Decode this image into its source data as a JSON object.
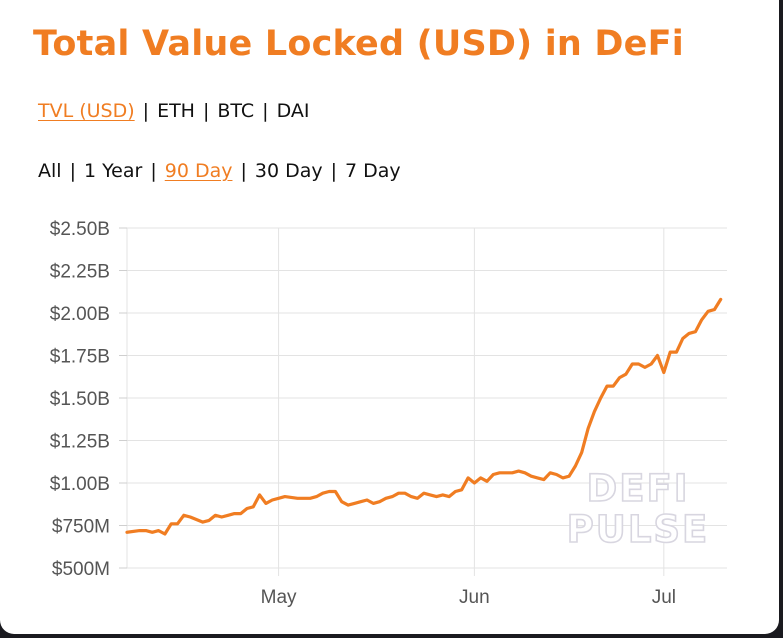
{
  "title": "Total Value Locked (USD) in DeFi",
  "metric_tabs": [
    {
      "label": "TVL (USD)",
      "active": true
    },
    {
      "label": "ETH",
      "active": false
    },
    {
      "label": "BTC",
      "active": false
    },
    {
      "label": "DAI",
      "active": false
    }
  ],
  "range_tabs": [
    {
      "label": "All",
      "active": false
    },
    {
      "label": "1 Year",
      "active": false
    },
    {
      "label": "90 Day",
      "active": true
    },
    {
      "label": "30 Day",
      "active": false
    },
    {
      "label": "7 Day",
      "active": false
    }
  ],
  "separator": "|",
  "watermark": [
    "DEFI",
    "PULSE"
  ],
  "colors": {
    "accent": "#f07d22",
    "grid": "#e3e3e3",
    "axis_text": "#555555"
  },
  "chart_data": {
    "type": "line",
    "title": "Total Value Locked (USD) in DeFi",
    "xlabel": "",
    "ylabel": "",
    "ylim": [
      0.5,
      2.5
    ],
    "yunit": "B USD",
    "yticks": [
      0.5,
      0.75,
      1.0,
      1.25,
      1.5,
      1.75,
      2.0,
      2.25,
      2.5
    ],
    "ytick_labels": [
      "$500M",
      "$750M",
      "$1.00B",
      "$1.25B",
      "$1.50B",
      "$1.75B",
      "$2.00B",
      "$2.25B",
      "$2.50B"
    ],
    "xlim": [
      "2020-04-07",
      "2020-07-11"
    ],
    "xticks": [
      {
        "label": "May",
        "date": "2020-05-01"
      },
      {
        "label": "Jun",
        "date": "2020-06-01"
      },
      {
        "label": "Jul",
        "date": "2020-07-01"
      }
    ],
    "grid": true,
    "legend": "none",
    "series": [
      {
        "color": "#f07d22",
        "points": [
          [
            "2020-04-07",
            0.71
          ],
          [
            "2020-04-09",
            0.72
          ],
          [
            "2020-04-10",
            0.72
          ],
          [
            "2020-04-11",
            0.71
          ],
          [
            "2020-04-12",
            0.72
          ],
          [
            "2020-04-13",
            0.7
          ],
          [
            "2020-04-14",
            0.76
          ],
          [
            "2020-04-15",
            0.76
          ],
          [
            "2020-04-16",
            0.81
          ],
          [
            "2020-04-17",
            0.8
          ],
          [
            "2020-04-19",
            0.77
          ],
          [
            "2020-04-20",
            0.78
          ],
          [
            "2020-04-21",
            0.81
          ],
          [
            "2020-04-22",
            0.8
          ],
          [
            "2020-04-23",
            0.81
          ],
          [
            "2020-04-24",
            0.82
          ],
          [
            "2020-04-25",
            0.82
          ],
          [
            "2020-04-26",
            0.85
          ],
          [
            "2020-04-27",
            0.86
          ],
          [
            "2020-04-28",
            0.93
          ],
          [
            "2020-04-29",
            0.88
          ],
          [
            "2020-04-30",
            0.9
          ],
          [
            "2020-05-01",
            0.91
          ],
          [
            "2020-05-02",
            0.92
          ],
          [
            "2020-05-04",
            0.91
          ],
          [
            "2020-05-06",
            0.91
          ],
          [
            "2020-05-07",
            0.92
          ],
          [
            "2020-05-08",
            0.94
          ],
          [
            "2020-05-09",
            0.95
          ],
          [
            "2020-05-10",
            0.95
          ],
          [
            "2020-05-11",
            0.89
          ],
          [
            "2020-05-12",
            0.87
          ],
          [
            "2020-05-13",
            0.88
          ],
          [
            "2020-05-14",
            0.89
          ],
          [
            "2020-05-15",
            0.9
          ],
          [
            "2020-05-16",
            0.88
          ],
          [
            "2020-05-17",
            0.89
          ],
          [
            "2020-05-18",
            0.91
          ],
          [
            "2020-05-19",
            0.92
          ],
          [
            "2020-05-20",
            0.94
          ],
          [
            "2020-05-21",
            0.94
          ],
          [
            "2020-05-22",
            0.92
          ],
          [
            "2020-05-23",
            0.91
          ],
          [
            "2020-05-24",
            0.94
          ],
          [
            "2020-05-25",
            0.93
          ],
          [
            "2020-05-26",
            0.92
          ],
          [
            "2020-05-27",
            0.93
          ],
          [
            "2020-05-28",
            0.92
          ],
          [
            "2020-05-29",
            0.95
          ],
          [
            "2020-05-30",
            0.96
          ],
          [
            "2020-05-31",
            1.03
          ],
          [
            "2020-06-01",
            1.0
          ],
          [
            "2020-06-02",
            1.03
          ],
          [
            "2020-06-03",
            1.01
          ],
          [
            "2020-06-04",
            1.05
          ],
          [
            "2020-06-05",
            1.06
          ],
          [
            "2020-06-06",
            1.06
          ],
          [
            "2020-06-07",
            1.06
          ],
          [
            "2020-06-08",
            1.07
          ],
          [
            "2020-06-09",
            1.06
          ],
          [
            "2020-06-10",
            1.04
          ],
          [
            "2020-06-11",
            1.03
          ],
          [
            "2020-06-12",
            1.02
          ],
          [
            "2020-06-13",
            1.06
          ],
          [
            "2020-06-14",
            1.05
          ],
          [
            "2020-06-15",
            1.03
          ],
          [
            "2020-06-16",
            1.04
          ],
          [
            "2020-06-17",
            1.1
          ],
          [
            "2020-06-18",
            1.18
          ],
          [
            "2020-06-19",
            1.32
          ],
          [
            "2020-06-20",
            1.42
          ],
          [
            "2020-06-21",
            1.5
          ],
          [
            "2020-06-22",
            1.57
          ],
          [
            "2020-06-23",
            1.57
          ],
          [
            "2020-06-24",
            1.62
          ],
          [
            "2020-06-25",
            1.64
          ],
          [
            "2020-06-26",
            1.7
          ],
          [
            "2020-06-27",
            1.7
          ],
          [
            "2020-06-28",
            1.68
          ],
          [
            "2020-06-29",
            1.7
          ],
          [
            "2020-06-30",
            1.75
          ],
          [
            "2020-07-01",
            1.65
          ],
          [
            "2020-07-02",
            1.77
          ],
          [
            "2020-07-03",
            1.77
          ],
          [
            "2020-07-04",
            1.85
          ],
          [
            "2020-07-05",
            1.88
          ],
          [
            "2020-07-06",
            1.89
          ],
          [
            "2020-07-07",
            1.96
          ],
          [
            "2020-07-08",
            2.01
          ],
          [
            "2020-07-09",
            2.02
          ],
          [
            "2020-07-10",
            2.08
          ]
        ]
      }
    ]
  }
}
